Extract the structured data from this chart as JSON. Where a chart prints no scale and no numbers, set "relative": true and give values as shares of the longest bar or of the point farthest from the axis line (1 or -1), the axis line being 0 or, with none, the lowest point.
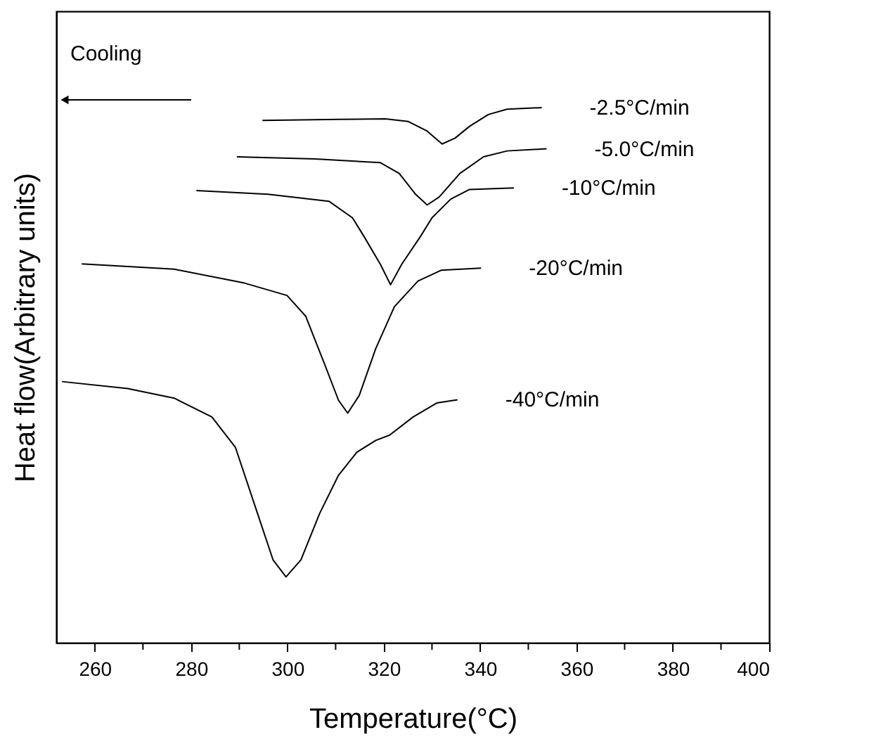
{
  "chart_data": {
    "type": "line",
    "xlabel": "Temperature(°C)",
    "ylabel": "Heat flow(Arbitrary units)",
    "relative": true,
    "xlim": [
      252,
      400
    ],
    "xticks": [
      260,
      {
        "value": 270,
        "label": null
      },
      280,
      {
        "value": 290,
        "label": null
      },
      300,
      {
        "value": 310,
        "label": null
      },
      320,
      {
        "value": 330,
        "label": null
      },
      340,
      {
        "value": 350,
        "label": null
      },
      360,
      {
        "value": 370,
        "label": null
      },
      380,
      {
        "value": 390,
        "label": null
      },
      400
    ],
    "grid": false,
    "legend": false,
    "marker": "none",
    "line_style": "solid",
    "annotations": [
      "Cooling"
    ],
    "series": [
      {
        "name": "-2.5°C/min",
        "color": "#000000",
        "x": [
          294.8,
          310.6,
          320.3,
          325.1,
          329.0,
          332.1,
          334.8,
          337.8,
          341.7,
          345.6,
          352.8
        ],
        "values": [
          0.976,
          0.978,
          0.979,
          0.974,
          0.956,
          0.932,
          0.943,
          0.965,
          0.987,
          0.997,
          1.0
        ]
      },
      {
        "name": "-5.0°C/min",
        "color": "#000000",
        "x": [
          289.5,
          305.7,
          319.3,
          323.2,
          326.6,
          329.0,
          331.5,
          335.8,
          340.7,
          345.6,
          353.8
        ],
        "values": [
          0.908,
          0.904,
          0.897,
          0.877,
          0.838,
          0.818,
          0.833,
          0.877,
          0.908,
          0.919,
          0.923
        ]
      },
      {
        "name": "-10°C/min",
        "color": "#000000",
        "x": [
          281.1,
          296.0,
          308.6,
          313.5,
          315.9,
          319.3,
          321.4,
          323.7,
          327.6,
          330.0,
          333.9,
          337.8,
          347.0
        ],
        "values": [
          0.845,
          0.838,
          0.825,
          0.794,
          0.759,
          0.707,
          0.669,
          0.707,
          0.759,
          0.794,
          0.829,
          0.847,
          0.85
        ]
      },
      {
        "name": "-20°C/min",
        "color": "#000000",
        "x": [
          257.3,
          276.5,
          291.1,
          299.9,
          303.8,
          307.6,
          310.6,
          312.5,
          314.9,
          318.3,
          322.2,
          327.1,
          331.9,
          340.2
        ],
        "values": [
          0.708,
          0.698,
          0.672,
          0.649,
          0.61,
          0.523,
          0.453,
          0.429,
          0.462,
          0.549,
          0.628,
          0.676,
          0.696,
          0.7
        ]
      },
      {
        "name": "-40°C/min",
        "color": "#000000",
        "x": [
          253.2,
          266.8,
          276.5,
          284.3,
          289.2,
          293.1,
          297.0,
          299.7,
          302.8,
          306.7,
          310.6,
          314.4,
          318.3,
          321.2,
          326.1,
          331.0,
          335.3
        ],
        "values": [
          0.488,
          0.475,
          0.457,
          0.422,
          0.365,
          0.26,
          0.155,
          0.123,
          0.155,
          0.242,
          0.313,
          0.356,
          0.378,
          0.388,
          0.422,
          0.448,
          0.454
        ]
      }
    ]
  }
}
